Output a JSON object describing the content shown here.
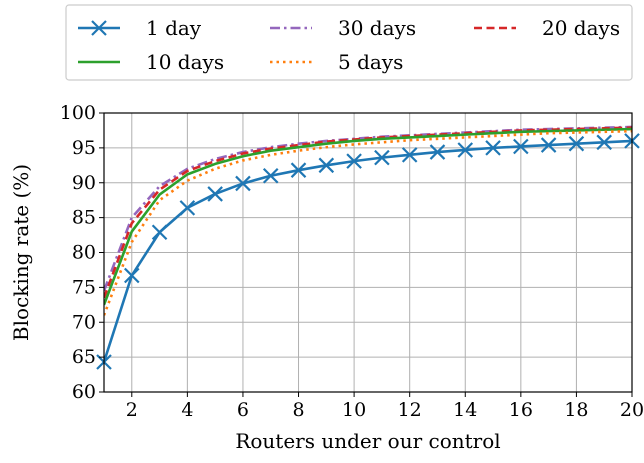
{
  "chart_data": {
    "type": "line",
    "xlabel": "Routers under our control",
    "ylabel": "Blocking rate (%)",
    "xlim": [
      1,
      20
    ],
    "ylim": [
      60,
      100
    ],
    "xticks": [
      2,
      4,
      6,
      8,
      10,
      12,
      14,
      16,
      18,
      20
    ],
    "yticks": [
      60,
      65,
      70,
      75,
      80,
      85,
      90,
      95,
      100
    ],
    "grid": true,
    "legend_position": "top, outside plot, 3 columns",
    "x": [
      1,
      2,
      3,
      4,
      5,
      6,
      7,
      8,
      9,
      10,
      11,
      12,
      13,
      14,
      15,
      16,
      17,
      18,
      19,
      20
    ],
    "series": [
      {
        "name": "1 day",
        "color": "#1f77b4",
        "line_style": "solid",
        "marker": "x",
        "values": [
          64.3,
          76.7,
          82.9,
          86.4,
          88.4,
          89.9,
          91.0,
          91.8,
          92.5,
          93.1,
          93.6,
          94.0,
          94.4,
          94.7,
          95.0,
          95.2,
          95.4,
          95.6,
          95.8,
          96.0
        ]
      },
      {
        "name": "5 days",
        "color": "#ff7f0e",
        "line_style": "dotted",
        "marker": "none",
        "values": [
          71.0,
          81.5,
          87.5,
          90.3,
          92.0,
          93.2,
          94.0,
          94.6,
          95.1,
          95.5,
          95.8,
          96.1,
          96.3,
          96.5,
          96.7,
          96.9,
          97.1,
          97.2,
          97.3,
          97.4
        ]
      },
      {
        "name": "10 days",
        "color": "#2ca02c",
        "line_style": "solid",
        "marker": "none",
        "values": [
          72.5,
          83.0,
          88.3,
          91.2,
          92.7,
          93.8,
          94.6,
          95.1,
          95.6,
          96.0,
          96.3,
          96.5,
          96.7,
          96.9,
          97.1,
          97.3,
          97.4,
          97.5,
          97.6,
          97.7
        ]
      },
      {
        "name": "20 days",
        "color": "#d62728",
        "line_style": "dashed",
        "marker": "none",
        "values": [
          73.5,
          84.2,
          89.0,
          91.7,
          93.1,
          94.2,
          94.9,
          95.4,
          95.9,
          96.2,
          96.5,
          96.7,
          96.9,
          97.1,
          97.3,
          97.5,
          97.6,
          97.7,
          97.8,
          97.9
        ]
      },
      {
        "name": "30 days",
        "color": "#9467bd",
        "line_style": "dashdot",
        "marker": "none",
        "values": [
          74.5,
          85.0,
          89.5,
          92.0,
          93.4,
          94.4,
          95.1,
          95.6,
          96.0,
          96.3,
          96.6,
          96.8,
          97.0,
          97.2,
          97.4,
          97.6,
          97.7,
          97.8,
          97.9,
          98.0
        ]
      }
    ]
  }
}
